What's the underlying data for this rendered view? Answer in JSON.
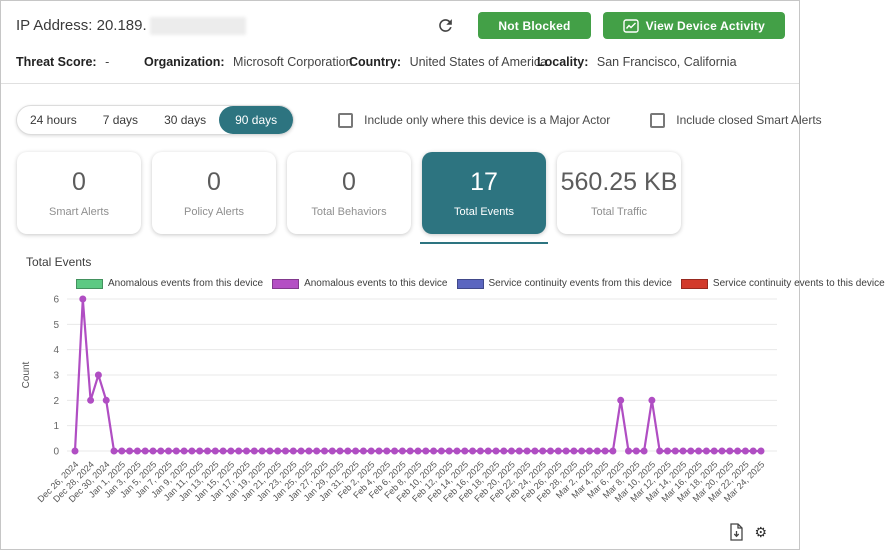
{
  "colors": {
    "accent_teal": "#2d7480",
    "button_green": "#43a047",
    "line_purple": "#b04ec3"
  },
  "header": {
    "ip_label": "IP Address: 20.189.",
    "not_blocked_label": "Not Blocked",
    "view_device_activity_label": "View Device Activity"
  },
  "info": {
    "threat_score_label": "Threat Score:",
    "threat_score_value": "-",
    "organization_label": "Organization:",
    "organization_value": "Microsoft Corporation",
    "country_label": "Country:",
    "country_value": "United States of America",
    "locality_label": "Locality:",
    "locality_value": "San Francisco, California"
  },
  "controls": {
    "ranges": [
      "24 hours",
      "7 days",
      "30 days",
      "90 days"
    ],
    "selected_range": "90 days",
    "major_actor_checkbox_label": "Include only where this device is a Major Actor",
    "major_actor_checkbox_checked": false,
    "closed_alerts_checkbox_label": "Include closed Smart Alerts",
    "closed_alerts_checkbox_checked": false
  },
  "stats": [
    {
      "value": "0",
      "label": "Smart Alerts",
      "selected": false
    },
    {
      "value": "0",
      "label": "Policy Alerts",
      "selected": false
    },
    {
      "value": "0",
      "label": "Total Behaviors",
      "selected": false
    },
    {
      "value": "17",
      "label": "Total Events",
      "selected": true
    },
    {
      "value": "560.25 KB",
      "label": "Total Traffic",
      "selected": false
    }
  ],
  "chart_data": {
    "type": "line",
    "title": "Total Events",
    "ylabel": "Count",
    "ylim": [
      0,
      6
    ],
    "yticks": [
      0,
      1,
      2,
      3,
      4,
      5,
      6
    ],
    "grid": true,
    "legend_position": "top",
    "legend": [
      {
        "label": "Anomalous events from this device",
        "color": "#5dc983"
      },
      {
        "label": "Anomalous events to this device",
        "color": "#b44fc4"
      },
      {
        "label": "Service continuity events from this device",
        "color": "#5b66c0"
      },
      {
        "label": "Service continuity events to this device",
        "color": "#d23a2b"
      }
    ],
    "series_name": "Anomalous events to this device",
    "series_color": "#b04ec3",
    "x_frequency": "daily",
    "x_tick_labels": [
      "Dec 26, 2024",
      "Dec 28, 2024",
      "Dec 30, 2024",
      "Jan 1, 2025",
      "Jan 3, 2025",
      "Jan 5, 2025",
      "Jan 7, 2025",
      "Jan 9, 2025",
      "Jan 11, 2025",
      "Jan 13, 2025",
      "Jan 15, 2025",
      "Jan 17, 2025",
      "Jan 19, 2025",
      "Jan 21, 2025",
      "Jan 23, 2025",
      "Jan 25, 2025",
      "Jan 27, 2025",
      "Jan 29, 2025",
      "Jan 31, 2025",
      "Feb 2, 2025",
      "Feb 4, 2025",
      "Feb 6, 2025",
      "Feb 8, 2025",
      "Feb 10, 2025",
      "Feb 12, 2025",
      "Feb 14, 2025",
      "Feb 16, 2025",
      "Feb 18, 2025",
      "Feb 20, 2025",
      "Feb 22, 2025",
      "Feb 24, 2025",
      "Feb 26, 2025",
      "Feb 28, 2025",
      "Mar 2, 2025",
      "Mar 4, 2025",
      "Mar 6, 2025",
      "Mar 8, 2025",
      "Mar 10, 2025",
      "Mar 12, 2025",
      "Mar 14, 2025",
      "Mar 16, 2025",
      "Mar 18, 2025",
      "Mar 20, 2025",
      "Mar 22, 2025",
      "Mar 24, 2025"
    ],
    "values": [
      0,
      6,
      2,
      3,
      2,
      0,
      0,
      0,
      0,
      0,
      0,
      0,
      0,
      0,
      0,
      0,
      0,
      0,
      0,
      0,
      0,
      0,
      0,
      0,
      0,
      0,
      0,
      0,
      0,
      0,
      0,
      0,
      0,
      0,
      0,
      0,
      0,
      0,
      0,
      0,
      0,
      0,
      0,
      0,
      0,
      0,
      0,
      0,
      0,
      0,
      0,
      0,
      0,
      0,
      0,
      0,
      0,
      0,
      0,
      0,
      0,
      0,
      0,
      0,
      0,
      0,
      0,
      0,
      0,
      0,
      2,
      0,
      0,
      0,
      2,
      0,
      0,
      0,
      0,
      0,
      0,
      0,
      0,
      0,
      0,
      0,
      0,
      0,
      0
    ],
    "annotated_points": [
      {
        "x": "Dec 27, 2024",
        "y": 6
      },
      {
        "x": "Dec 28, 2024",
        "y": 2
      },
      {
        "x": "Dec 29, 2024",
        "y": 3
      },
      {
        "x": "Dec 30, 2024",
        "y": 2
      },
      {
        "x": "Mar 6, 2025",
        "y": 2
      },
      {
        "x": "Mar 10, 2025",
        "y": 2
      }
    ]
  },
  "footer": {
    "export_icon": "export-report",
    "settings_icon": "settings"
  }
}
